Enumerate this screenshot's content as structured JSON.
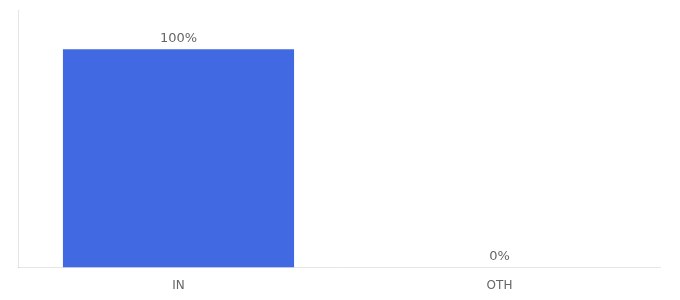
{
  "chart_data": {
    "type": "bar",
    "categories": [
      "IN",
      "OTH"
    ],
    "values": [
      100,
      0
    ],
    "value_labels": [
      "100%",
      "0%"
    ],
    "data_labels": true,
    "color": "#4169E1",
    "ylim": [
      0,
      118
    ],
    "yticks": [],
    "grid": false,
    "tick_labels": "x"
  }
}
